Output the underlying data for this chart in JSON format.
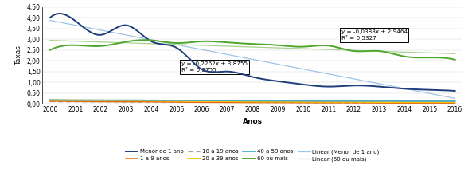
{
  "years": [
    2000,
    2001,
    2002,
    2003,
    2004,
    2005,
    2006,
    2007,
    2008,
    2009,
    2010,
    2011,
    2012,
    2013,
    2014,
    2015,
    2016
  ],
  "menor_de_1_ano": [
    4.0,
    3.85,
    3.2,
    3.65,
    2.9,
    2.6,
    1.6,
    1.5,
    1.25,
    1.05,
    0.9,
    0.8,
    0.85,
    0.8,
    0.7,
    0.65,
    0.6
  ],
  "1_a_9_anos": [
    0.12,
    0.11,
    0.1,
    0.1,
    0.09,
    0.08,
    0.07,
    0.07,
    0.06,
    0.06,
    0.05,
    0.05,
    0.05,
    0.04,
    0.04,
    0.04,
    0.04
  ],
  "10_a_19_anos": [
    0.1,
    0.09,
    0.09,
    0.08,
    0.08,
    0.07,
    0.07,
    0.07,
    0.06,
    0.06,
    0.05,
    0.05,
    0.05,
    0.05,
    0.04,
    0.04,
    0.04
  ],
  "20_a_39_anos": [
    0.18,
    0.17,
    0.16,
    0.15,
    0.14,
    0.13,
    0.12,
    0.11,
    0.1,
    0.1,
    0.09,
    0.09,
    0.09,
    0.08,
    0.08,
    0.08,
    0.08
  ],
  "40_a_59_anos": [
    0.18,
    0.17,
    0.17,
    0.17,
    0.16,
    0.16,
    0.15,
    0.15,
    0.14,
    0.14,
    0.13,
    0.13,
    0.13,
    0.13,
    0.12,
    0.12,
    0.12
  ],
  "60_ou_mais": [
    2.5,
    2.72,
    2.68,
    2.88,
    2.95,
    2.82,
    2.9,
    2.85,
    2.78,
    2.72,
    2.65,
    2.7,
    2.45,
    2.45,
    2.2,
    2.15,
    2.05
  ],
  "linear_menor_slope": -0.2262,
  "linear_menor_intercept": 3.8755,
  "linear_60_slope": -0.0388,
  "linear_60_intercept": 2.9464,
  "ylim": [
    0,
    4.5
  ],
  "yticks": [
    0.0,
    0.5,
    1.0,
    1.5,
    2.0,
    2.5,
    3.0,
    3.5,
    4.0,
    4.5
  ],
  "xlabel": "Anos",
  "ylabel": "Taxas",
  "colors": {
    "menor_de_1_ano": "#1f3d7a",
    "1_a_9_anos": "#e36c09",
    "10_a_19_anos": "#a0a0a0",
    "20_a_39_anos": "#ffc000",
    "40_a_59_anos": "#4bacc6",
    "60_ou_mais": "#4ea72c",
    "linear_menor": "#9dc3e6",
    "linear_60": "#a9d18e"
  },
  "annotation_menor": "y = -0,2262x + 3,8755\nR² = 0,8755",
  "annotation_60": "y = -0,0388x + 2,9464\nR² = 0,5327",
  "legend_labels": [
    "Menor de 1 ano",
    "1 a 9 anos",
    "10 a 19 anos",
    "20 a 39 anos",
    "40 a 59 anos",
    "60 ou mais",
    "Linear (Menor de 1 ano)",
    "Linear (60 ou mais)"
  ],
  "background_color": "#ffffff",
  "fig_width": 5.93,
  "fig_height": 2.17
}
